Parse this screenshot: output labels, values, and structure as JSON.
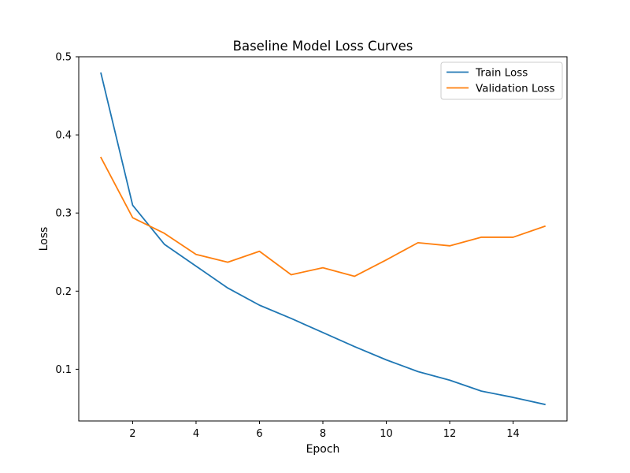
{
  "chart_data": {
    "type": "line",
    "title": "Baseline Model Loss Curves",
    "xlabel": "Epoch",
    "ylabel": "Loss",
    "x": [
      1,
      2,
      3,
      4,
      5,
      6,
      7,
      8,
      9,
      10,
      11,
      12,
      13,
      14,
      15
    ],
    "series": [
      {
        "name": "Train Loss",
        "color": "#1f77b4",
        "values": [
          0.479,
          0.31,
          0.26,
          0.232,
          0.204,
          0.182,
          0.165,
          0.147,
          0.129,
          0.112,
          0.097,
          0.086,
          0.072,
          0.064,
          0.055
        ]
      },
      {
        "name": "Validation Loss",
        "color": "#ff7f0e",
        "values": [
          0.371,
          0.294,
          0.274,
          0.247,
          0.237,
          0.251,
          0.221,
          0.23,
          0.219,
          0.24,
          0.262,
          0.258,
          0.269,
          0.269,
          0.283
        ]
      }
    ],
    "xlim": [
      0.3,
      15.7
    ],
    "ylim": [
      0.0338,
      0.5
    ],
    "xticks": [
      2,
      4,
      6,
      8,
      10,
      12,
      14
    ],
    "yticks": [
      0.1,
      0.2,
      0.3,
      0.4,
      0.5
    ],
    "grid": false,
    "legend_position": "top-right"
  }
}
